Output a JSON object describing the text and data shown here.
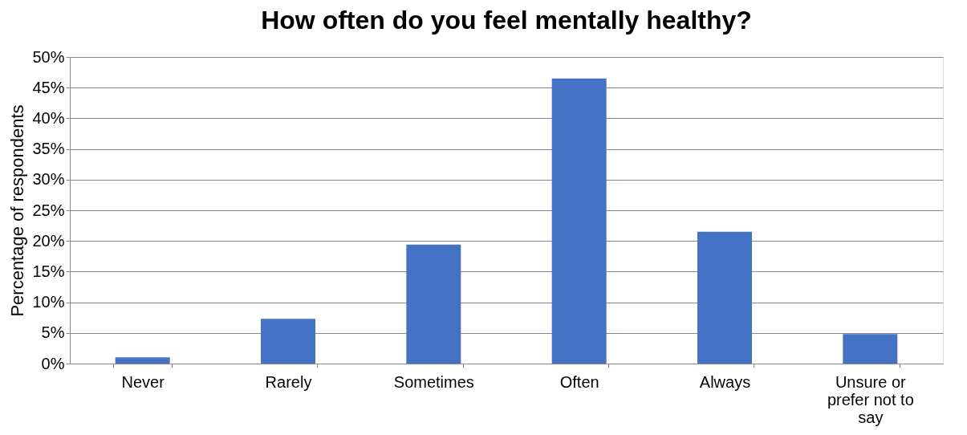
{
  "chart_data": {
    "type": "bar",
    "title": "How often do you feel mentally healthy?",
    "ylabel": "Percentage of respondents",
    "categories": [
      "Never",
      "Rarely",
      "Sometimes",
      "Often",
      "Always",
      "Unsure or prefer not to say"
    ],
    "values": [
      1.0,
      7.3,
      19.4,
      46.5,
      21.5,
      4.8
    ],
    "color": "#4472c4",
    "ylim": [
      0,
      50
    ],
    "yticks": [
      {
        "value": 0,
        "label": "0%"
      },
      {
        "value": 5,
        "label": "5%"
      },
      {
        "value": 10,
        "label": "10%"
      },
      {
        "value": 15,
        "label": "15%"
      },
      {
        "value": 20,
        "label": "20%"
      },
      {
        "value": 25,
        "label": "25%"
      },
      {
        "value": 30,
        "label": "30%"
      },
      {
        "value": 35,
        "label": "35%"
      },
      {
        "value": 40,
        "label": "40%"
      },
      {
        "value": 45,
        "label": "45%"
      },
      {
        "value": 50,
        "label": "50%"
      }
    ],
    "grid": "y"
  }
}
